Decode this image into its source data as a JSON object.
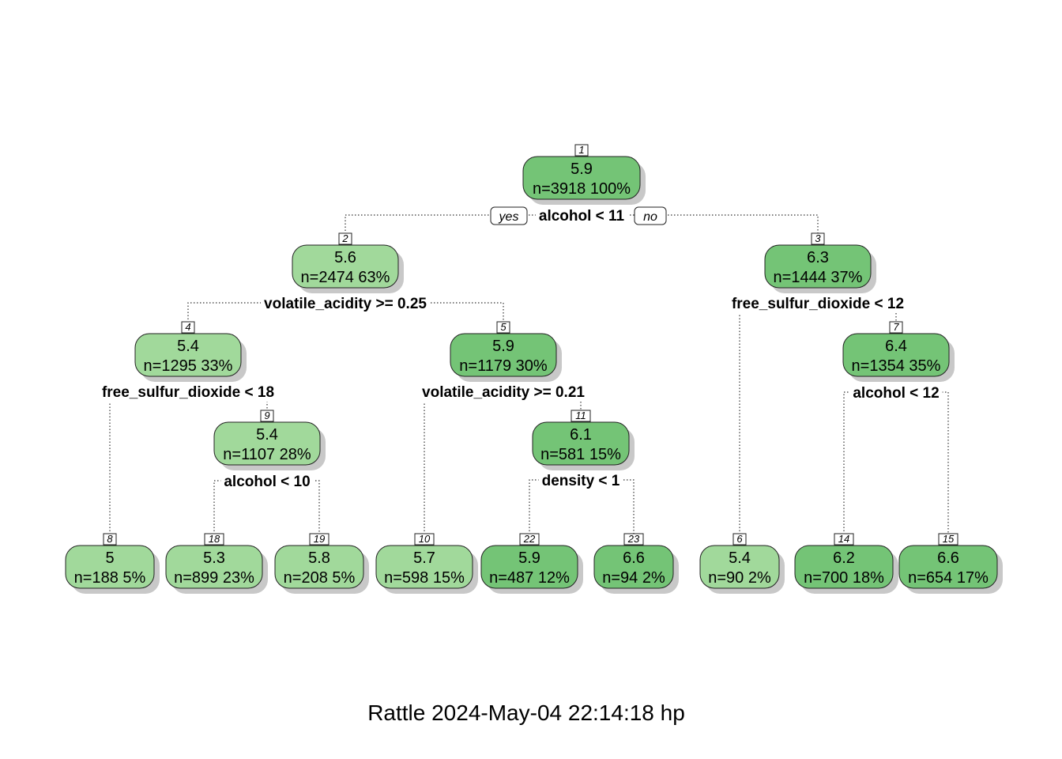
{
  "colors": {
    "light": "#a1d99b",
    "dark": "#74c476",
    "border": "#222222",
    "shadow": "#c8c8c8"
  },
  "nodes": [
    {
      "id": "1",
      "value": "5.9",
      "stats": "n=3918  100%",
      "shade": "dark"
    },
    {
      "id": "2",
      "value": "5.6",
      "stats": "n=2474  63%",
      "shade": "light"
    },
    {
      "id": "3",
      "value": "6.3",
      "stats": "n=1444  37%",
      "shade": "dark"
    },
    {
      "id": "4",
      "value": "5.4",
      "stats": "n=1295  33%",
      "shade": "light"
    },
    {
      "id": "5",
      "value": "5.9",
      "stats": "n=1179  30%",
      "shade": "dark"
    },
    {
      "id": "7",
      "value": "6.4",
      "stats": "n=1354  35%",
      "shade": "dark"
    },
    {
      "id": "9",
      "value": "5.4",
      "stats": "n=1107  28%",
      "shade": "light"
    },
    {
      "id": "11",
      "value": "6.1",
      "stats": "n=581  15%",
      "shade": "dark"
    },
    {
      "id": "8",
      "value": "5",
      "stats": "n=188  5%",
      "shade": "light"
    },
    {
      "id": "18",
      "value": "5.3",
      "stats": "n=899  23%",
      "shade": "light"
    },
    {
      "id": "19",
      "value": "5.8",
      "stats": "n=208  5%",
      "shade": "light"
    },
    {
      "id": "10",
      "value": "5.7",
      "stats": "n=598  15%",
      "shade": "light"
    },
    {
      "id": "22",
      "value": "5.9",
      "stats": "n=487  12%",
      "shade": "dark"
    },
    {
      "id": "23",
      "value": "6.6",
      "stats": "n=94  2%",
      "shade": "dark"
    },
    {
      "id": "6",
      "value": "5.4",
      "stats": "n=90  2%",
      "shade": "light"
    },
    {
      "id": "14",
      "value": "6.2",
      "stats": "n=700  18%",
      "shade": "dark"
    },
    {
      "id": "15",
      "value": "6.6",
      "stats": "n=654  17%",
      "shade": "dark"
    }
  ],
  "splits": [
    {
      "node": "1",
      "label": "alcohol < 11"
    },
    {
      "node": "2",
      "label": "volatile_acidity >= 0.25"
    },
    {
      "node": "3",
      "label": "free_sulfur_dioxide < 12"
    },
    {
      "node": "4",
      "label": "free_sulfur_dioxide < 18"
    },
    {
      "node": "5",
      "label": "volatile_acidity >= 0.21"
    },
    {
      "node": "7",
      "label": "alcohol < 12"
    },
    {
      "node": "9",
      "label": "alcohol < 10"
    },
    {
      "node": "11",
      "label": "density < 1"
    }
  ],
  "branch_labels": {
    "yes": "yes",
    "no": "no"
  },
  "caption": "Rattle 2024-May-04 22:14:18 hp"
}
